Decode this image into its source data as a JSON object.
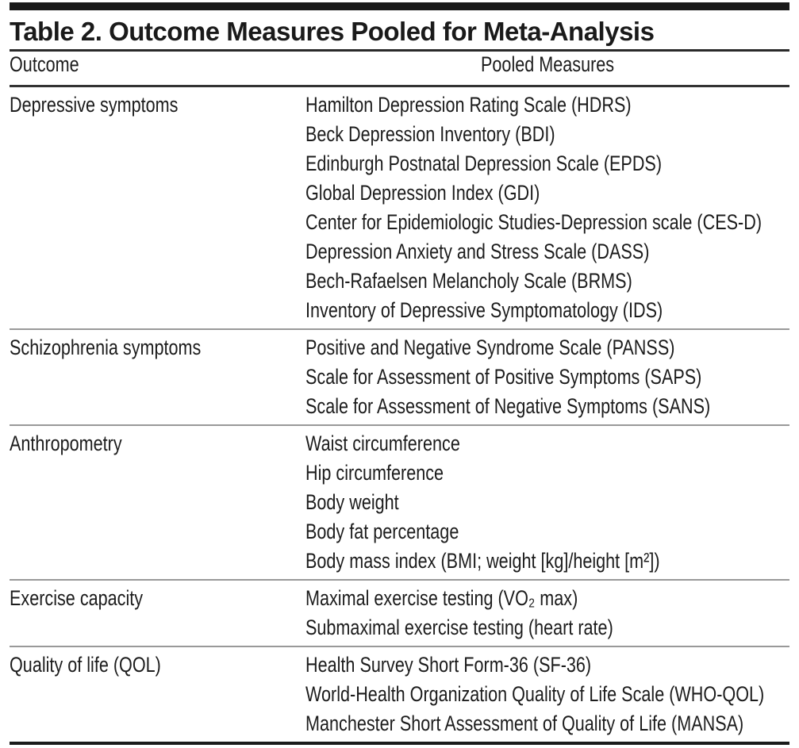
{
  "table": {
    "title": "Table 2. Outcome Measures Pooled for Meta-Analysis",
    "columns": {
      "outcome": "Outcome",
      "measures": "Pooled Measures"
    },
    "rows": [
      {
        "outcome": "Depressive symptoms",
        "measures": [
          "Hamilton Depression Rating Scale (HDRS)",
          "Beck Depression Inventory (BDI)",
          "Edinburgh Postnatal Depression Scale (EPDS)",
          "Global Depression Index (GDI)",
          "Center for Epidemiologic Studies-Depression scale (CES-D)",
          "Depression Anxiety and Stress Scale (DASS)",
          "Bech-Rafaelsen Melancholy Scale (BRMS)",
          "Inventory of Depressive Symptomatology (IDS)"
        ]
      },
      {
        "outcome": "Schizophrenia symptoms",
        "measures": [
          "Positive and Negative Syndrome Scale (PANSS)",
          "Scale for Assessment of Positive Symptoms (SAPS)",
          "Scale for Assessment of Negative Symptoms (SANS)"
        ]
      },
      {
        "outcome": "Anthropometry",
        "measures": [
          "Waist circumference",
          "Hip circumference",
          "Body weight",
          "Body fat percentage",
          "Body mass index (BMI; weight [kg]/height [m²])"
        ]
      },
      {
        "outcome": "Exercise capacity",
        "measures": [
          "Maximal exercise testing (VO₂ max)",
          "Submaximal exercise testing (heart rate)"
        ]
      },
      {
        "outcome": "Quality of life (QOL)",
        "measures": [
          "Health Survey Short Form-36 (SF-36)",
          "World-Health Organization Quality of Life Scale (WHO-QOL)",
          "Manchester Short Assessment of Quality of Life (MANSA)"
        ]
      }
    ],
    "colors": {
      "text": "#1c1c1c",
      "heavy_rule": "#1a1a1a",
      "medium_rule": "#333333",
      "section_rule": "#999999"
    }
  }
}
